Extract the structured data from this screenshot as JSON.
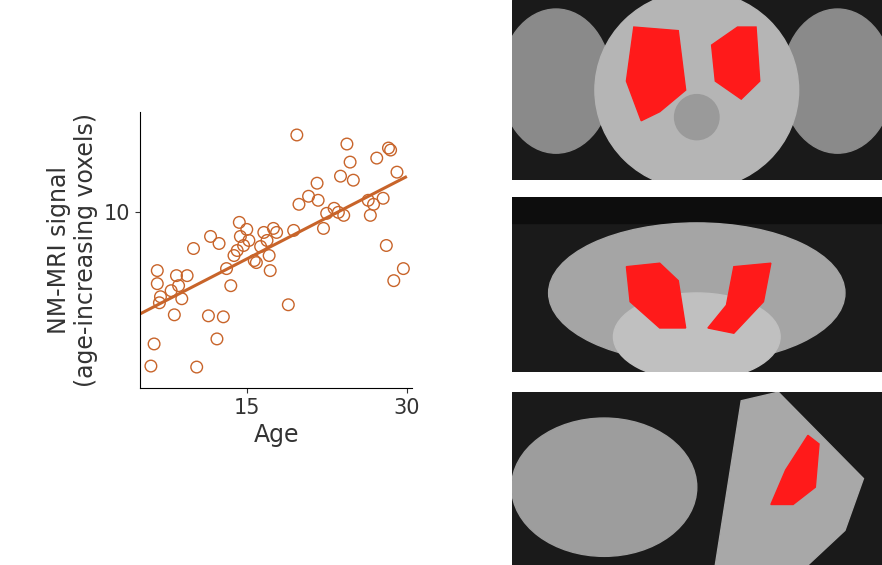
{
  "chart_data": {
    "type": "scatter",
    "x_label": "Age",
    "y_label": "NM-MRI signal\n(age-increasing voxels)",
    "xlim": [
      5,
      30.5
    ],
    "xticks": [
      15,
      30
    ],
    "ylim": [
      3,
      14
    ],
    "yticks": [
      10
    ],
    "grid": false,
    "series": [
      {
        "type": "scatter",
        "color": "#c8642a",
        "marker": "open_circle",
        "x": [
          6.0,
          6.3,
          6.6,
          6.6,
          6.8,
          6.9,
          7.9,
          8.2,
          8.4,
          8.6,
          8.9,
          9.4,
          10.0,
          10.3,
          11.4,
          11.6,
          12.2,
          12.4,
          12.8,
          13.1,
          13.5,
          13.8,
          14.1,
          14.3,
          14.4,
          14.7,
          15.0,
          15.2,
          15.7,
          15.9,
          16.3,
          16.6,
          16.9,
          17.1,
          17.2,
          17.5,
          17.8,
          18.9,
          19.4,
          19.7,
          19.9,
          20.8,
          21.6,
          21.7,
          22.2,
          22.5,
          23.2,
          23.6,
          23.8,
          24.1,
          24.4,
          24.7,
          25.0,
          26.4,
          26.6,
          26.9,
          27.2,
          27.8,
          28.1,
          28.3,
          28.5,
          28.8,
          29.1,
          29.7
        ],
        "values": [
          3.88,
          4.76,
          7.68,
          7.16,
          6.4,
          6.64,
          6.88,
          5.92,
          7.48,
          7.08,
          6.56,
          7.48,
          8.56,
          3.84,
          5.88,
          9.04,
          4.96,
          8.76,
          5.84,
          7.76,
          7.08,
          8.28,
          8.48,
          9.6,
          9.04,
          8.68,
          9.32,
          8.88,
          8.08,
          8.0,
          8.64,
          9.2,
          8.88,
          8.28,
          7.68,
          9.36,
          9.2,
          6.32,
          9.28,
          13.08,
          10.32,
          10.64,
          11.16,
          10.48,
          9.36,
          9.96,
          10.16,
          10.0,
          11.44,
          9.88,
          12.72,
          12.0,
          11.28,
          10.48,
          9.88,
          10.32,
          12.16,
          10.56,
          8.68,
          12.56,
          12.48,
          7.28,
          11.6,
          7.76
        ]
      },
      {
        "type": "line",
        "color": "#c8642a",
        "line_style": "solid",
        "x": [
          5,
          29.9
        ],
        "values": [
          5.96,
          11.4
        ]
      }
    ]
  }
}
